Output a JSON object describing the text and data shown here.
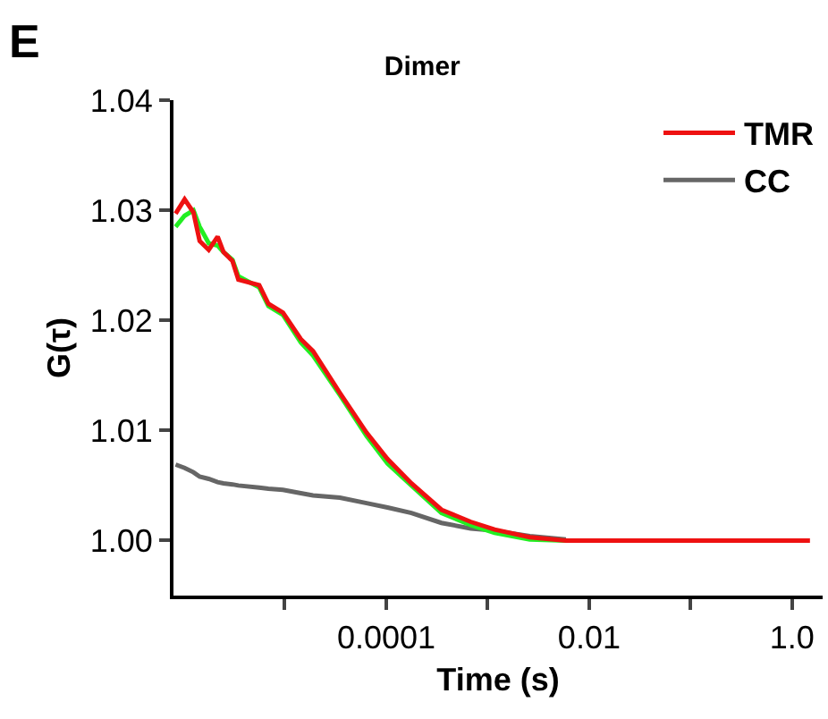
{
  "chart_data": {
    "type": "line",
    "title": "Dimer",
    "xlabel": "Time (s)",
    "ylabel": "G(τ)",
    "annotations": [
      "E"
    ],
    "log": "x",
    "x": [
      8.4e-07,
      1.03e-06,
      1.26e-06,
      1.45e-06,
      1.78e-06,
      2.18e-06,
      2.49e-06,
      3.05e-06,
      3.49e-06,
      5.6e-06,
      6.9e-06,
      9.6e-06,
      1.44e-05,
      1.9e-05,
      3.5e-05,
      6.4e-05,
      0.000103,
      0.000177,
      0.00035,
      0.00068,
      0.00117,
      0.0026,
      0.0059,
      0.02,
      0.1,
      0.5,
      1.5
    ],
    "series": [
      {
        "name": "CC",
        "color": "#666666",
        "values": [
          1.0069,
          1.0066,
          1.0062,
          1.0058,
          1.0056,
          1.0053,
          1.0052,
          1.0051,
          1.005,
          1.0048,
          1.0047,
          1.0046,
          1.0043,
          1.0041,
          1.0039,
          1.0034,
          1.003,
          1.0025,
          1.0016,
          1.0011,
          1.0009,
          1.0004,
          1.0001,
          null,
          null,
          null,
          null
        ]
      },
      {
        "color": "#22ee22",
        "values": [
          1.0285,
          1.0295,
          1.03,
          1.0285,
          1.027,
          1.0268,
          1.0262,
          1.0255,
          1.024,
          1.023,
          1.0213,
          1.0205,
          1.018,
          1.0168,
          1.0132,
          1.0095,
          1.007,
          1.005,
          1.0025,
          1.0014,
          1.0007,
          1.0001,
          1.0,
          null,
          null,
          null,
          null
        ]
      },
      {
        "name": "TMR",
        "color": "#ee1111",
        "values": [
          1.0297,
          1.031,
          1.0298,
          1.0272,
          1.0264,
          1.0276,
          1.0262,
          1.0254,
          1.0237,
          1.0232,
          1.0215,
          1.0207,
          1.0183,
          1.0172,
          1.0134,
          1.0098,
          1.0074,
          1.0052,
          1.0028,
          1.0017,
          1.001,
          1.0003,
          1.0,
          1.0,
          1.0,
          1.0,
          1.0
        ]
      }
    ],
    "xlim": [
      8e-07,
      2
    ],
    "xticks": [
      {
        "value": 1e-05,
        "label": null
      },
      0.0001,
      {
        "value": 0.001,
        "label": null
      },
      0.01,
      {
        "value": 0.1,
        "label": null
      },
      {
        "value": 1,
        "label": "1.0"
      }
    ],
    "ylim": [
      0.995,
      1.04
    ],
    "yticks": [
      {
        "value": 1.0,
        "label": "1.00"
      },
      1.01,
      1.02,
      1.03,
      1.04
    ],
    "legend": "top right",
    "marker": "none",
    "line_style": "solid"
  }
}
